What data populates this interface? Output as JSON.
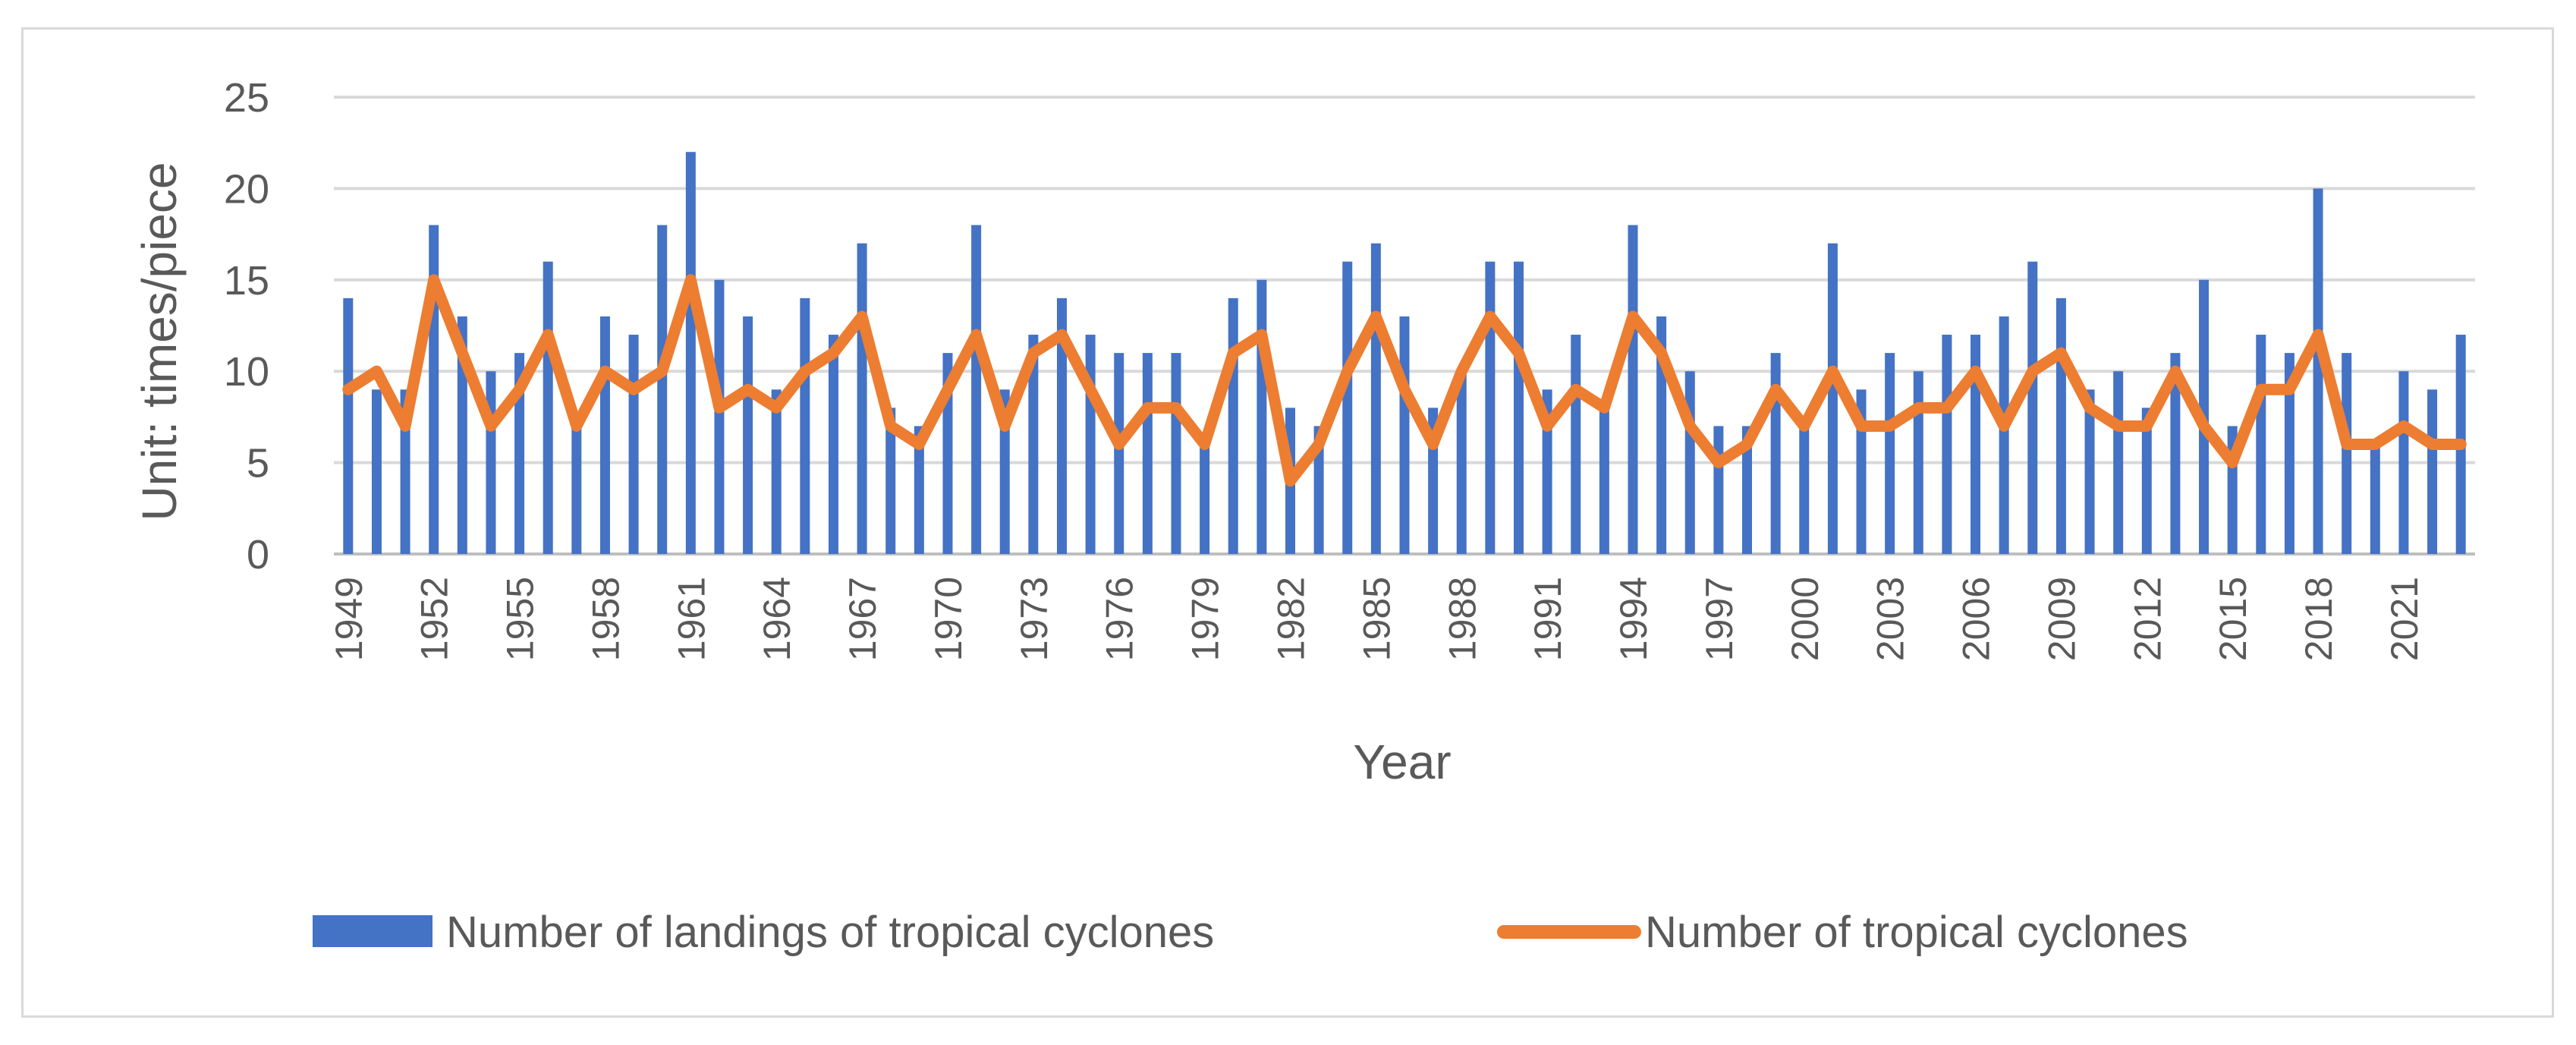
{
  "chart_data": {
    "type": "bar",
    "title": "",
    "xlabel": "Year",
    "ylabel": "Unit: times/piece",
    "ylim": [
      0,
      25
    ],
    "yticks": [
      "0",
      "5",
      "10",
      "15",
      "20",
      "25"
    ],
    "grid": true,
    "legend_position": "bottom",
    "colors": {
      "bars": "#4472C4",
      "line": "#ED7D31",
      "grid": "#d9d9d9",
      "axis": "#bfbfbf"
    },
    "categories": [
      "1949",
      "1950",
      "1951",
      "1952",
      "1953",
      "1954",
      "1955",
      "1956",
      "1957",
      "1958",
      "1959",
      "1960",
      "1961",
      "1962",
      "1963",
      "1964",
      "1965",
      "1966",
      "1967",
      "1968",
      "1969",
      "1970",
      "1971",
      "1972",
      "1973",
      "1974",
      "1975",
      "1976",
      "1977",
      "1978",
      "1979",
      "1980",
      "1981",
      "1982",
      "1983",
      "1984",
      "1985",
      "1986",
      "1987",
      "1988",
      "1989",
      "1990",
      "1991",
      "1992",
      "1993",
      "1994",
      "1995",
      "1996",
      "1997",
      "1998",
      "1999",
      "2000",
      "2001",
      "2002",
      "2003",
      "2004",
      "2005",
      "2006",
      "2007",
      "2008",
      "2009",
      "2010",
      "2011",
      "2012",
      "2013",
      "2014",
      "2015",
      "2016",
      "2017",
      "2018",
      "2019",
      "2020",
      "2021",
      "2022",
      "2023"
    ],
    "tick_labels": [
      "1949",
      "1952",
      "1955",
      "1958",
      "1961",
      "1964",
      "1967",
      "1970",
      "1973",
      "1976",
      "1979",
      "1982",
      "1985",
      "1988",
      "1991",
      "1994",
      "1997",
      "2000",
      "2003",
      "2006",
      "2009",
      "2012",
      "2015",
      "2018",
      "2021"
    ],
    "series": [
      {
        "name": "Number of landings of tropical cyclones",
        "type": "bar",
        "values": [
          14,
          9,
          9,
          18,
          13,
          10,
          11,
          16,
          7,
          13,
          12,
          18,
          22,
          15,
          13,
          9,
          14,
          12,
          17,
          8,
          7,
          11,
          18,
          9,
          12,
          14,
          12,
          11,
          11,
          11,
          6,
          14,
          15,
          8,
          7,
          16,
          17,
          13,
          8,
          10,
          16,
          16,
          9,
          12,
          8,
          18,
          13,
          10,
          7,
          7,
          11,
          7,
          17,
          9,
          11,
          10,
          12,
          12,
          13,
          16,
          14,
          9,
          10,
          8,
          11,
          15,
          7,
          12,
          11,
          20,
          11,
          6,
          10,
          9,
          12
        ]
      },
      {
        "name": "Number of tropical cyclones",
        "type": "line",
        "values": [
          9,
          10,
          7,
          15,
          11,
          7,
          9,
          12,
          7,
          10,
          9,
          10,
          15,
          8,
          9,
          8,
          10,
          11,
          13,
          7,
          6,
          9,
          12,
          7,
          11,
          12,
          9,
          6,
          8,
          8,
          6,
          11,
          12,
          4,
          6,
          10,
          13,
          9,
          6,
          10,
          13,
          11,
          7,
          9,
          8,
          13,
          11,
          7,
          5,
          6,
          9,
          7,
          10,
          7,
          7,
          8,
          8,
          10,
          7,
          10,
          11,
          8,
          7,
          7,
          10,
          7,
          5,
          9,
          9,
          12,
          6,
          6,
          7,
          6,
          6
        ]
      }
    ]
  }
}
